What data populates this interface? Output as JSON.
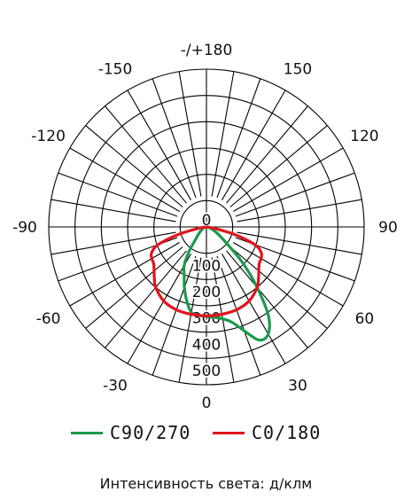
{
  "chart_data": {
    "type": "polar",
    "angle_labels": [
      {
        "angle": 180,
        "text": "-/+180"
      },
      {
        "angle": -150,
        "text": "-150"
      },
      {
        "angle": 150,
        "text": "150"
      },
      {
        "angle": -120,
        "text": "-120"
      },
      {
        "angle": 120,
        "text": "120"
      },
      {
        "angle": -90,
        "text": "-90"
      },
      {
        "angle": 90,
        "text": "90"
      },
      {
        "angle": -60,
        "text": "-60"
      },
      {
        "angle": 60,
        "text": "60"
      },
      {
        "angle": -30,
        "text": "-30"
      },
      {
        "angle": 30,
        "text": "30"
      },
      {
        "angle": 0,
        "text": "0"
      }
    ],
    "radial_ticks": [
      0,
      100,
      200,
      300,
      400,
      500
    ],
    "radial_range": [
      0,
      600
    ],
    "angular_grid_step": 10,
    "series": [
      {
        "name": "C90/270",
        "color": "#1a9a4a",
        "points": [
          {
            "angle": -90,
            "value": 0
          },
          {
            "angle": -70,
            "value": 12
          },
          {
            "angle": -50,
            "value": 35
          },
          {
            "angle": -40,
            "value": 70
          },
          {
            "angle": -35,
            "value": 120
          },
          {
            "angle": -30,
            "value": 170
          },
          {
            "angle": -25,
            "value": 200
          },
          {
            "angle": -20,
            "value": 245
          },
          {
            "angle": -15,
            "value": 290
          },
          {
            "angle": -10,
            "value": 330
          },
          {
            "angle": -5,
            "value": 337
          },
          {
            "angle": 0,
            "value": 340
          },
          {
            "angle": 5,
            "value": 345
          },
          {
            "angle": 10,
            "value": 355
          },
          {
            "angle": 15,
            "value": 375
          },
          {
            "angle": 20,
            "value": 420
          },
          {
            "angle": 25,
            "value": 475
          },
          {
            "angle": 30,
            "value": 470
          },
          {
            "angle": 35,
            "value": 410
          },
          {
            "angle": 40,
            "value": 300
          },
          {
            "angle": 45,
            "value": 200
          },
          {
            "angle": 50,
            "value": 110
          },
          {
            "angle": 60,
            "value": 45
          },
          {
            "angle": 75,
            "value": 12
          },
          {
            "angle": 90,
            "value": 0
          }
        ]
      },
      {
        "name": "C0/180",
        "color": "#e0141c",
        "points": [
          {
            "angle": -90,
            "value": 0
          },
          {
            "angle": -80,
            "value": 30
          },
          {
            "angle": -75,
            "value": 110
          },
          {
            "angle": -70,
            "value": 195
          },
          {
            "angle": -65,
            "value": 230
          },
          {
            "angle": -60,
            "value": 240
          },
          {
            "angle": -55,
            "value": 245
          },
          {
            "angle": -50,
            "value": 260
          },
          {
            "angle": -45,
            "value": 280
          },
          {
            "angle": -40,
            "value": 300
          },
          {
            "angle": -30,
            "value": 325
          },
          {
            "angle": -20,
            "value": 335
          },
          {
            "angle": -10,
            "value": 337
          },
          {
            "angle": 0,
            "value": 338
          },
          {
            "angle": 10,
            "value": 337
          },
          {
            "angle": 20,
            "value": 335
          },
          {
            "angle": 30,
            "value": 325
          },
          {
            "angle": 40,
            "value": 300
          },
          {
            "angle": 45,
            "value": 280
          },
          {
            "angle": 50,
            "value": 260
          },
          {
            "angle": 55,
            "value": 245
          },
          {
            "angle": 60,
            "value": 240
          },
          {
            "angle": 65,
            "value": 230
          },
          {
            "angle": 70,
            "value": 195
          },
          {
            "angle": 75,
            "value": 110
          },
          {
            "angle": 80,
            "value": 30
          },
          {
            "angle": 90,
            "value": 0
          }
        ]
      }
    ],
    "legend": [
      {
        "name": "C90/270",
        "color": "#1a9a4a"
      },
      {
        "name": "C0/180",
        "color": "#e0141c"
      }
    ],
    "legend_position": "bottom",
    "caption": "Интенсивность света: д/клм"
  }
}
